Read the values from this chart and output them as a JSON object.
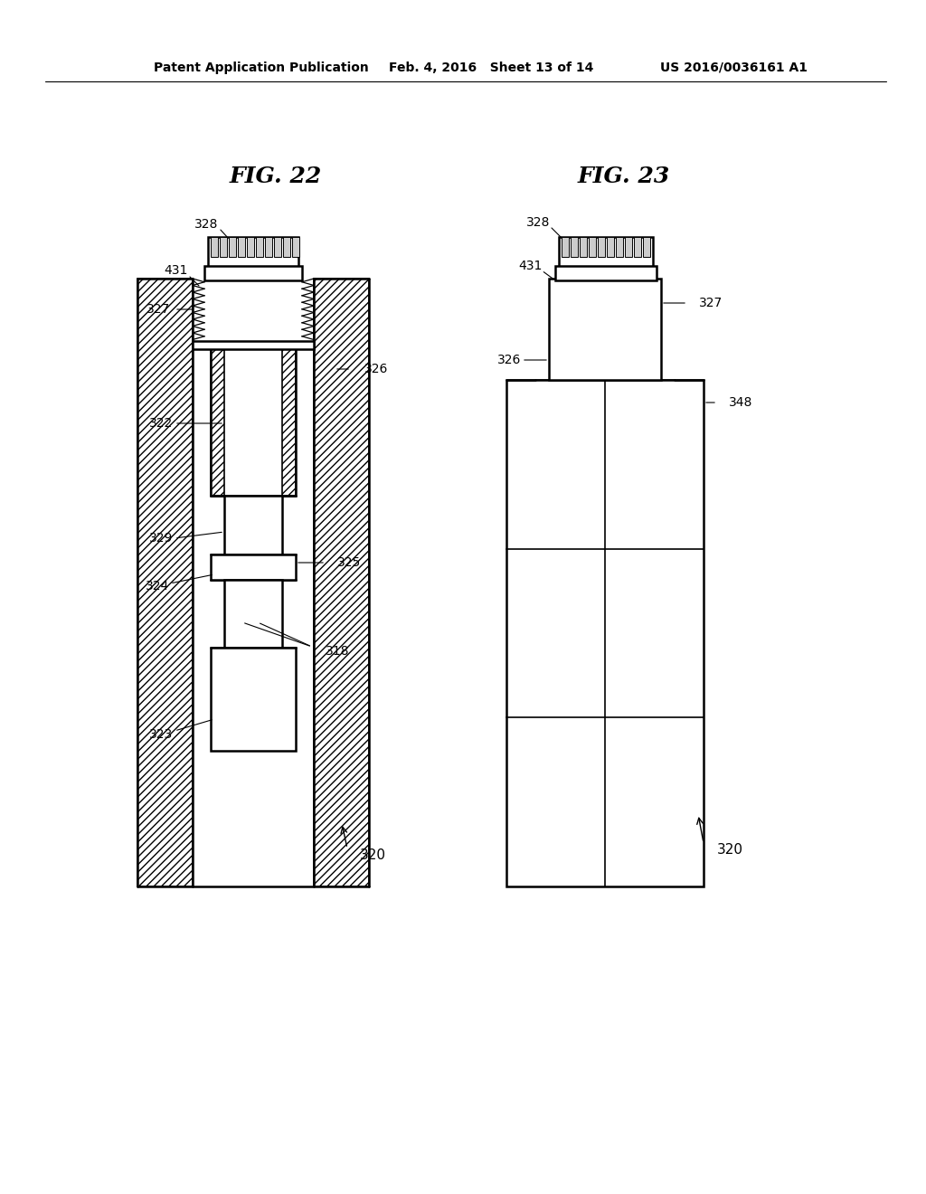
{
  "bg_color": "#ffffff",
  "line_color": "#000000",
  "header_left": "Patent Application Publication",
  "header_mid": "Feb. 4, 2016   Sheet 13 of 14",
  "header_right": "US 2016/0036161 A1",
  "fig22_title": "FIG. 22",
  "fig23_title": "FIG. 23"
}
